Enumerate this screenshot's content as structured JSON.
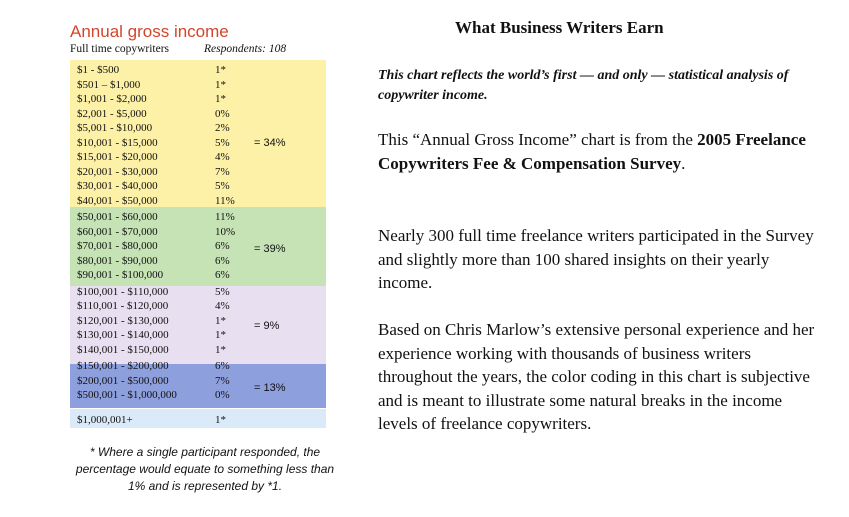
{
  "chart": {
    "title": "Annual gross income",
    "subtitle": "Full time copywriters",
    "respondents": "Respondents: 108",
    "rows": [
      {
        "range": "$1 - $500",
        "pct": "1*"
      },
      {
        "range": "$501 – $1,000",
        "pct": "1*"
      },
      {
        "range": "$1,001 - $2,000",
        "pct": "1*"
      },
      {
        "range": "$2,001 - $5,000",
        "pct": "0%"
      },
      {
        "range": "$5,001 - $10,000",
        "pct": "2%"
      },
      {
        "range": "$10,001 - $15,000",
        "pct": "5%"
      },
      {
        "range": "$15,001 - $20,000",
        "pct": "4%"
      },
      {
        "range": "$20,001 - $30,000",
        "pct": "7%"
      },
      {
        "range": "$30,001 - $40,000",
        "pct": "5%"
      },
      {
        "range": "$40,001 - $50,000",
        "pct": "11%"
      },
      {
        "range": "$50,001 - $60,000",
        "pct": "11%"
      },
      {
        "range": "$60,001 - $70,000",
        "pct": "10%"
      },
      {
        "range": "$70,001 - $80,000",
        "pct": "6%"
      },
      {
        "range": "$80,001 - $90,000",
        "pct": "6%"
      },
      {
        "range": "$90,001 - $100,000",
        "pct": "6%"
      },
      {
        "range": "$100,001 - $110,000",
        "pct": "5%"
      },
      {
        "range": "$110,001 - $120,000",
        "pct": "4%"
      },
      {
        "range": "$120,001 - $130,000",
        "pct": "1*"
      },
      {
        "range": "$130,001 - $140,000",
        "pct": "1*"
      },
      {
        "range": "$140,001 - $150,000",
        "pct": "1*"
      },
      {
        "range": "$150,001 - $200,000",
        "pct": "6%"
      },
      {
        "range": "$200,001 - $500,000",
        "pct": "7%"
      },
      {
        "range": "$500,001 - $1,000,000",
        "pct": "0%"
      },
      {
        "range": "$1,000,001+",
        "pct": "1*"
      }
    ],
    "groups": [
      {
        "label": "=  34%",
        "color": "#fdf1a8"
      },
      {
        "label": "=  39%",
        "color": "#c6e3b6"
      },
      {
        "label": "=   9%",
        "color": "#e8dff0"
      },
      {
        "label": "=  13%",
        "color": "#8e9fde"
      }
    ],
    "footnote": "* Where a single participant responded, the percentage would equate to something less than 1% and is represented by *1."
  },
  "doc": {
    "title": "What Business Writers Earn",
    "intro": "This chart reflects the world’s first — and only — statistical analysis of copywriter income.",
    "p1_a": "This “Annual Gross Income” chart is from the ",
    "p1_b": "2005 Freelance Copywriters Fee & Compensation Survey",
    "p1_c": ".",
    "p2": "Nearly 300 full time freelance writers participated in the Survey and slightly more than 100 shared insights on their yearly income.",
    "p3": "Based on Chris Marlow’s extensive personal experience and her experience working with thousands of business writers throughout the years, the color coding in this chart is subjective and is meant to illustrate some natural breaks in the income levels of freelance copywriters."
  }
}
